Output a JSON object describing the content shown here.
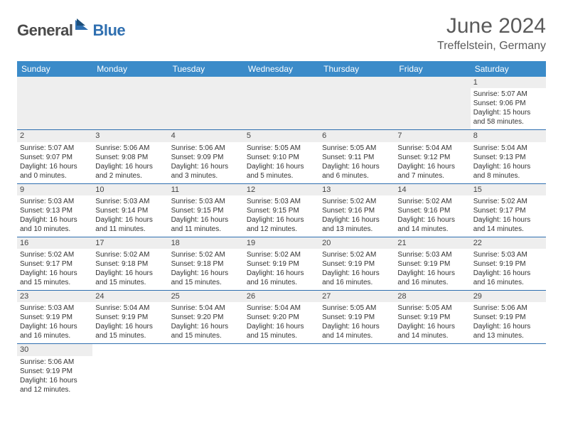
{
  "logo": {
    "text1": "General",
    "text2": "Blue"
  },
  "title": "June 2024",
  "location": "Treffelstein, Germany",
  "days": [
    "Sunday",
    "Monday",
    "Tuesday",
    "Wednesday",
    "Thursday",
    "Friday",
    "Saturday"
  ],
  "colors": {
    "header_bg": "#3b8bc9",
    "header_text": "#ffffff",
    "row_divider": "#2f6fb0",
    "daynum_bg": "#eeeeee",
    "logo_gray": "#4a4a4a",
    "logo_blue": "#2f6fb0"
  },
  "weeks": [
    [
      null,
      null,
      null,
      null,
      null,
      null,
      {
        "n": "1",
        "sunrise": "5:07 AM",
        "sunset": "9:06 PM",
        "daylight": "15 hours and 58 minutes."
      }
    ],
    [
      {
        "n": "2",
        "sunrise": "5:07 AM",
        "sunset": "9:07 PM",
        "daylight": "16 hours and 0 minutes."
      },
      {
        "n": "3",
        "sunrise": "5:06 AM",
        "sunset": "9:08 PM",
        "daylight": "16 hours and 2 minutes."
      },
      {
        "n": "4",
        "sunrise": "5:06 AM",
        "sunset": "9:09 PM",
        "daylight": "16 hours and 3 minutes."
      },
      {
        "n": "5",
        "sunrise": "5:05 AM",
        "sunset": "9:10 PM",
        "daylight": "16 hours and 5 minutes."
      },
      {
        "n": "6",
        "sunrise": "5:05 AM",
        "sunset": "9:11 PM",
        "daylight": "16 hours and 6 minutes."
      },
      {
        "n": "7",
        "sunrise": "5:04 AM",
        "sunset": "9:12 PM",
        "daylight": "16 hours and 7 minutes."
      },
      {
        "n": "8",
        "sunrise": "5:04 AM",
        "sunset": "9:13 PM",
        "daylight": "16 hours and 8 minutes."
      }
    ],
    [
      {
        "n": "9",
        "sunrise": "5:03 AM",
        "sunset": "9:13 PM",
        "daylight": "16 hours and 10 minutes."
      },
      {
        "n": "10",
        "sunrise": "5:03 AM",
        "sunset": "9:14 PM",
        "daylight": "16 hours and 11 minutes."
      },
      {
        "n": "11",
        "sunrise": "5:03 AM",
        "sunset": "9:15 PM",
        "daylight": "16 hours and 11 minutes."
      },
      {
        "n": "12",
        "sunrise": "5:03 AM",
        "sunset": "9:15 PM",
        "daylight": "16 hours and 12 minutes."
      },
      {
        "n": "13",
        "sunrise": "5:02 AM",
        "sunset": "9:16 PM",
        "daylight": "16 hours and 13 minutes."
      },
      {
        "n": "14",
        "sunrise": "5:02 AM",
        "sunset": "9:16 PM",
        "daylight": "16 hours and 14 minutes."
      },
      {
        "n": "15",
        "sunrise": "5:02 AM",
        "sunset": "9:17 PM",
        "daylight": "16 hours and 14 minutes."
      }
    ],
    [
      {
        "n": "16",
        "sunrise": "5:02 AM",
        "sunset": "9:17 PM",
        "daylight": "16 hours and 15 minutes."
      },
      {
        "n": "17",
        "sunrise": "5:02 AM",
        "sunset": "9:18 PM",
        "daylight": "16 hours and 15 minutes."
      },
      {
        "n": "18",
        "sunrise": "5:02 AM",
        "sunset": "9:18 PM",
        "daylight": "16 hours and 15 minutes."
      },
      {
        "n": "19",
        "sunrise": "5:02 AM",
        "sunset": "9:19 PM",
        "daylight": "16 hours and 16 minutes."
      },
      {
        "n": "20",
        "sunrise": "5:02 AM",
        "sunset": "9:19 PM",
        "daylight": "16 hours and 16 minutes."
      },
      {
        "n": "21",
        "sunrise": "5:03 AM",
        "sunset": "9:19 PM",
        "daylight": "16 hours and 16 minutes."
      },
      {
        "n": "22",
        "sunrise": "5:03 AM",
        "sunset": "9:19 PM",
        "daylight": "16 hours and 16 minutes."
      }
    ],
    [
      {
        "n": "23",
        "sunrise": "5:03 AM",
        "sunset": "9:19 PM",
        "daylight": "16 hours and 16 minutes."
      },
      {
        "n": "24",
        "sunrise": "5:04 AM",
        "sunset": "9:19 PM",
        "daylight": "16 hours and 15 minutes."
      },
      {
        "n": "25",
        "sunrise": "5:04 AM",
        "sunset": "9:20 PM",
        "daylight": "16 hours and 15 minutes."
      },
      {
        "n": "26",
        "sunrise": "5:04 AM",
        "sunset": "9:20 PM",
        "daylight": "16 hours and 15 minutes."
      },
      {
        "n": "27",
        "sunrise": "5:05 AM",
        "sunset": "9:19 PM",
        "daylight": "16 hours and 14 minutes."
      },
      {
        "n": "28",
        "sunrise": "5:05 AM",
        "sunset": "9:19 PM",
        "daylight": "16 hours and 14 minutes."
      },
      {
        "n": "29",
        "sunrise": "5:06 AM",
        "sunset": "9:19 PM",
        "daylight": "16 hours and 13 minutes."
      }
    ],
    [
      {
        "n": "30",
        "sunrise": "5:06 AM",
        "sunset": "9:19 PM",
        "daylight": "16 hours and 12 minutes."
      },
      null,
      null,
      null,
      null,
      null,
      null
    ]
  ],
  "labels": {
    "sunrise_prefix": "Sunrise: ",
    "sunset_prefix": "Sunset: ",
    "daylight_prefix": "Daylight: "
  }
}
